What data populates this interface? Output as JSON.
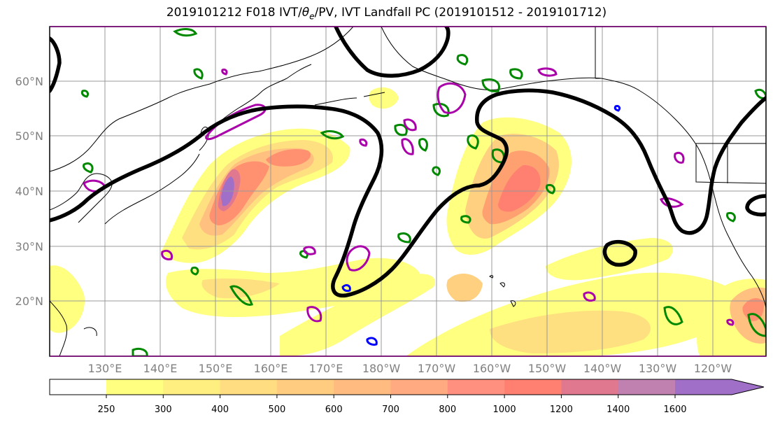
{
  "title": {
    "prefix": "2019101212 F018 IVT/",
    "theta": "θ",
    "sub": "e",
    "suffix": "/PV, IVT Landfall PC (2019101512 - 2019101712)"
  },
  "map": {
    "lon_labels": [
      "130°E",
      "140°E",
      "150°E",
      "160°E",
      "170°E",
      "180°W",
      "170°W",
      "160°W",
      "150°W",
      "140°W",
      "130°W",
      "120°W"
    ],
    "lat_labels": [
      "60°N",
      "50°N",
      "40°N",
      "30°N",
      "20°N"
    ]
  },
  "colorbar": {
    "levels": [
      "250",
      "300",
      "400",
      "500",
      "600",
      "700",
      "800",
      "1000",
      "1200",
      "1400",
      "1600"
    ],
    "colors": [
      "#ffff80",
      "#ffee80",
      "#ffdd80",
      "#ffcc80",
      "#ffbb80",
      "#ffaa80",
      "#ff9080",
      "#ff8070",
      "#e07890",
      "#c080b0",
      "#a070c8"
    ]
  },
  "colors": {
    "ivt_low": "#ffff80",
    "ivt_mid": "#ffb080",
    "ivt_high": "#ff7060",
    "ivt_peak": "#a070c8",
    "pv_contour": "#000000",
    "theta_e_warm": "#aa00aa",
    "theta_e_cold": "#008800",
    "theta_e_blue": "#0000ff"
  }
}
